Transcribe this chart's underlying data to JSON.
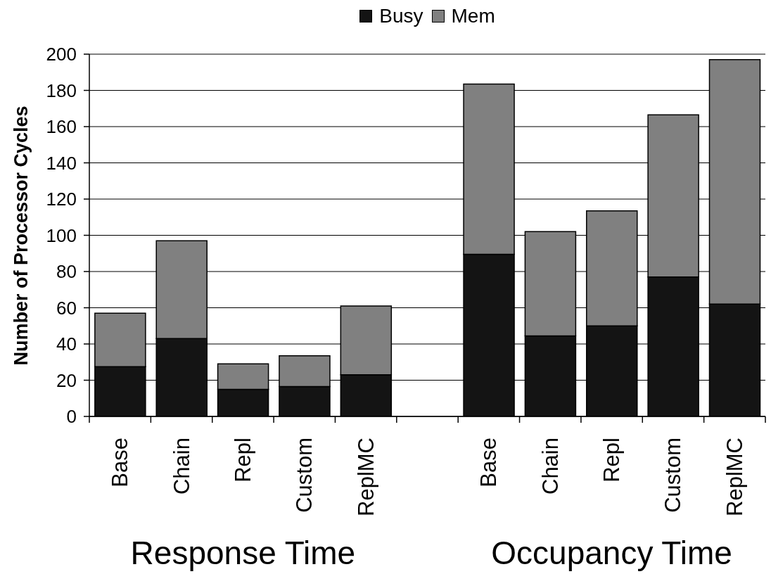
{
  "chart_data": {
    "type": "bar",
    "stacked": true,
    "categories": [
      "Base",
      "Chain",
      "Repl",
      "Custom",
      "ReplMC",
      null,
      "Base",
      "Chain",
      "Repl",
      "Custom",
      "ReplMC"
    ],
    "series": [
      {
        "name": "Busy",
        "color": "#141414",
        "values": [
          27.5,
          43,
          15,
          16.5,
          23,
          null,
          89.5,
          44.5,
          50,
          77,
          62
        ]
      },
      {
        "name": "Mem",
        "color": "#808080",
        "values": [
          29.5,
          54,
          14,
          17,
          38,
          null,
          94,
          57.5,
          63.5,
          89.5,
          135
        ]
      }
    ],
    "ylabel": "Number of Processor Cycles",
    "ylim": [
      0,
      200
    ],
    "yticks": [
      0,
      20,
      40,
      60,
      80,
      100,
      120,
      140,
      160,
      180,
      200
    ],
    "grid": "y",
    "legend": "top",
    "annotations": [
      "Response Time",
      "Occupancy Time"
    ]
  }
}
